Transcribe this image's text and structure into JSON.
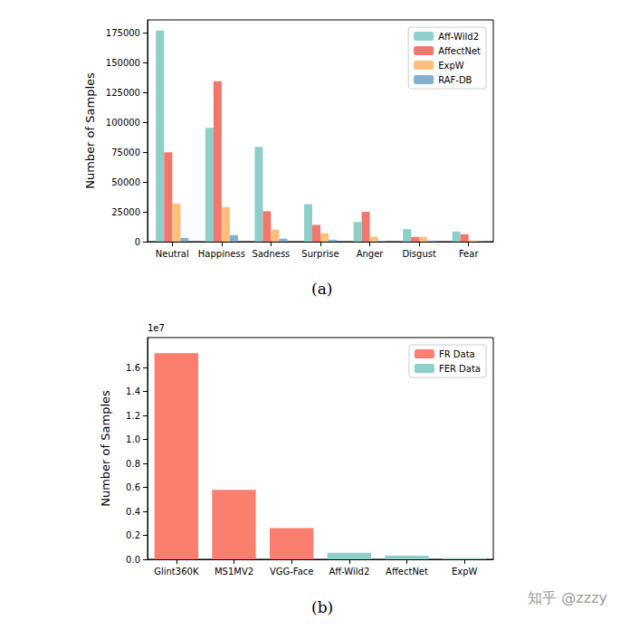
{
  "chart_data": [
    {
      "type": "bar",
      "caption": "(a)",
      "ylabel": "Number of Samples",
      "categories": [
        "Neutral",
        "Happiness",
        "Sadness",
        "Surprise",
        "Anger",
        "Disgust",
        "Fear"
      ],
      "series": [
        {
          "name": "Aff-Wild2",
          "color": "#8ecfc9",
          "values": [
            177000,
            95500,
            79500,
            31500,
            16500,
            10500,
            8500
          ]
        },
        {
          "name": "AffectNet",
          "color": "#f0776b",
          "values": [
            75000,
            134500,
            25500,
            14000,
            25000,
            4000,
            6200
          ]
        },
        {
          "name": "ExpW",
          "color": "#ffbe7a",
          "values": [
            32000,
            29000,
            10000,
            7000,
            4000,
            4000,
            1000
          ]
        },
        {
          "name": "RAF-DB",
          "color": "#82b0d2",
          "values": [
            3200,
            5500,
            2500,
            1600,
            700,
            900,
            350
          ]
        }
      ],
      "ylim": [
        0,
        186000
      ],
      "yticks": [
        0,
        25000,
        50000,
        75000,
        100000,
        125000,
        150000,
        175000
      ],
      "legend": "upper right",
      "grid": false
    },
    {
      "type": "bar",
      "caption": "(b)",
      "ylabel": "Number of Samples",
      "y_scale_label": "1e7",
      "categories": [
        "Glint360K",
        "MS1MV2",
        "VGG-Face",
        "Aff-Wild2",
        "AffectNet",
        "ExpW"
      ],
      "series": [
        {
          "name": "FR Data",
          "color": "#fa7f6f",
          "values": [
            1.72,
            0.58,
            0.26,
            null,
            null,
            null
          ]
        },
        {
          "name": "FER Data",
          "color": "#8ecfc9",
          "values": [
            null,
            null,
            null,
            0.055,
            0.03,
            0.009
          ]
        }
      ],
      "stacked": true,
      "ylim": [
        0,
        1.85
      ],
      "yticks": [
        {
          "value": 0,
          "label": "0.0"
        },
        {
          "value": 0.2,
          "label": "0.2"
        },
        {
          "value": 0.4,
          "label": "0.4"
        },
        {
          "value": 0.6,
          "label": "0.6"
        },
        {
          "value": 0.8,
          "label": "0.8"
        },
        {
          "value": 1.0,
          "label": "1.0"
        },
        {
          "value": 1.2,
          "label": "1.2"
        },
        {
          "value": 1.4,
          "label": "1.4"
        },
        {
          "value": 1.6,
          "label": "1.6"
        }
      ],
      "legend": "upper right",
      "grid": false
    }
  ],
  "watermark": "知乎 @zzzy"
}
